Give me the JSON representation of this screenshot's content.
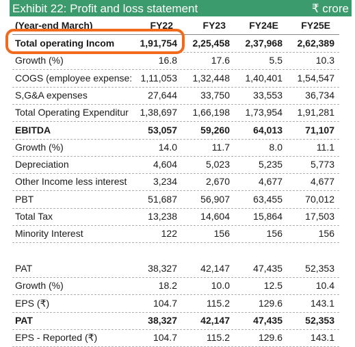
{
  "header": {
    "title": "Exhibit 22: Profit and loss statement",
    "unit": "₹ crore"
  },
  "table": {
    "columns": [
      "(Year-end March)",
      "FY22",
      "FY23",
      "FY24E",
      "FY25E"
    ],
    "sections": [
      [
        {
          "label": "Total operating Incom",
          "values": [
            "1,91,754",
            "2,25,458",
            "2,37,968",
            "2,62,389"
          ],
          "bold": true
        },
        {
          "label": "Growth (%)",
          "values": [
            "16.8",
            "17.6",
            "5.5",
            "10.3"
          ]
        },
        {
          "label": "COGS (employee expense:",
          "values": [
            "1,11,053",
            "1,32,448",
            "1,40,401",
            "1,54,547"
          ]
        },
        {
          "label": "S,G&A expenses",
          "values": [
            "27,644",
            "33,750",
            "33,553",
            "36,734"
          ]
        },
        {
          "label": "Total Operating Expenditur",
          "values": [
            "1,38,697",
            "1,66,198",
            "1,73,954",
            "1,91,281"
          ]
        },
        {
          "label": "EBITDA",
          "values": [
            "53,057",
            "59,260",
            "64,013",
            "71,107"
          ],
          "bold": true
        },
        {
          "label": "Growth (%)",
          "values": [
            "14.0",
            "11.7",
            "8.0",
            "11.1"
          ]
        },
        {
          "label": "Depreciation",
          "values": [
            "4,604",
            "5,023",
            "5,235",
            "5,773"
          ]
        },
        {
          "label": "Other Income less interest",
          "values": [
            "3,234",
            "2,670",
            "4,677",
            "4,677"
          ]
        },
        {
          "label": "PBT",
          "values": [
            "51,687",
            "56,907",
            "63,455",
            "70,012"
          ]
        },
        {
          "label": "Total Tax",
          "values": [
            "13,238",
            "14,604",
            "15,864",
            "17,503"
          ]
        },
        {
          "label": "Minority Interest",
          "values": [
            "122",
            "156",
            "156",
            "156"
          ]
        }
      ],
      [
        {
          "label": "PAT",
          "values": [
            "38,327",
            "42,147",
            "47,435",
            "52,353"
          ]
        },
        {
          "label": "Growth (%)",
          "values": [
            "18.2",
            "10.0",
            "12.5",
            "10.4"
          ]
        },
        {
          "label": "EPS (₹)",
          "values": [
            "104.7",
            "115.2",
            "129.6",
            "143.1"
          ]
        },
        {
          "label": "PAT",
          "values": [
            "38,327",
            "42,147",
            "47,435",
            "52,353"
          ],
          "bold": true
        },
        {
          "label": "EPS - Reported (₹)",
          "values": [
            "104.7",
            "115.2",
            "129.6",
            "143.1"
          ]
        }
      ]
    ]
  }
}
